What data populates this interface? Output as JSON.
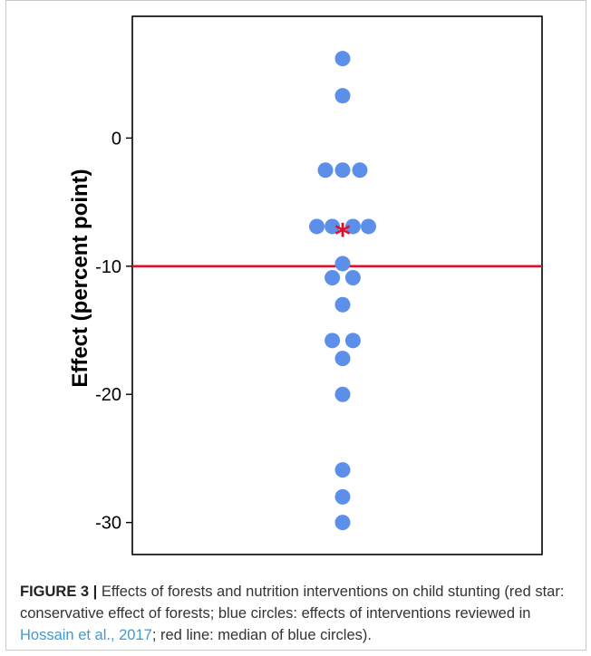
{
  "chart_data": {
    "type": "scatter",
    "title": "",
    "xlabel": "",
    "ylabel": "Effect (percent point)",
    "ylim": [
      -32.5,
      9.5
    ],
    "y_ticks": [
      0,
      -10,
      -20,
      -30
    ],
    "y_tick_labels": [
      "0",
      "-10",
      "-20",
      "-30"
    ],
    "grid": false,
    "series": [
      {
        "marker": "circle",
        "color": "#5b8fea",
        "points": [
          {
            "x": 0,
            "y": 6.2
          },
          {
            "x": 0,
            "y": 3.3
          },
          {
            "x": -1,
            "y": -2.5
          },
          {
            "x": 0,
            "y": -2.5
          },
          {
            "x": 1,
            "y": -2.5
          },
          {
            "x": -1.5,
            "y": -6.9
          },
          {
            "x": -0.6,
            "y": -6.9
          },
          {
            "x": 0.6,
            "y": -6.9
          },
          {
            "x": 1.5,
            "y": -6.9
          },
          {
            "x": 0,
            "y": -9.8
          },
          {
            "x": -0.6,
            "y": -10.9
          },
          {
            "x": 0.6,
            "y": -10.9
          },
          {
            "x": 0,
            "y": -13.0
          },
          {
            "x": -0.6,
            "y": -15.8
          },
          {
            "x": 0.6,
            "y": -15.8
          },
          {
            "x": 0,
            "y": -17.2
          },
          {
            "x": 0,
            "y": -20.0
          },
          {
            "x": 0,
            "y": -25.9
          },
          {
            "x": 0,
            "y": -28.0
          },
          {
            "x": 0,
            "y": -30.0
          }
        ]
      },
      {
        "marker": "star",
        "color": "#e0102a",
        "points": [
          {
            "x": 0,
            "y": -7.2
          }
        ]
      }
    ],
    "reference_line": {
      "y": -10,
      "color": "#e0102a"
    }
  },
  "caption": {
    "figure_label": "FIGURE 3 |",
    "text_before_citation": " Effects of forests and nutrition interventions on child stunting (red star: conservative effect of forests; blue circles: effects of interventions reviewed in ",
    "citation": "Hossain et al., 2017",
    "text_after_citation": "; red line: median of blue circles)."
  }
}
